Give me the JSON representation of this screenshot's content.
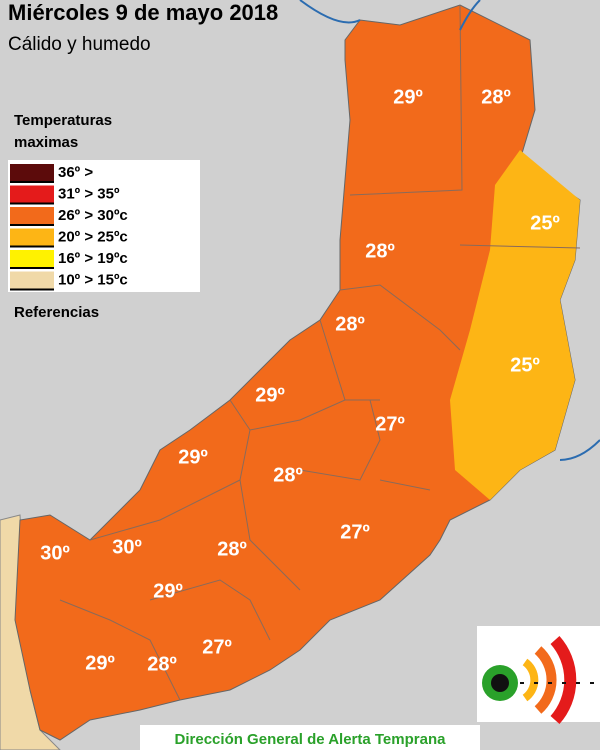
{
  "header": {
    "title": "Miércoles 9 de mayo 2018",
    "subtitle": "Cálido y humedo"
  },
  "legend": {
    "title": [
      "Temperaturas",
      "maximas"
    ],
    "items": [
      {
        "label": "36º >",
        "color": "#5c0b0b"
      },
      {
        "label": "31º > 35º",
        "color": "#e41b1b"
      },
      {
        "label": "26º > 30ºc",
        "color": "#f26a1b"
      },
      {
        "label": "20º > 25ºc",
        "color": "#fdb515"
      },
      {
        "label": "16º > 19ºc",
        "color": "#fff200"
      },
      {
        "label": "10º > 15ºc",
        "color": "#f0d9a8"
      }
    ],
    "footer": "Referencias"
  },
  "regions": [
    "29º",
    "28º",
    "25º",
    "28º",
    "28º",
    "25º",
    "29º",
    "27º",
    "29º",
    "28º",
    "27º",
    "30º",
    "30º",
    "28º",
    "29º",
    "29º",
    "28º",
    "27º"
  ],
  "credit": "Dirección General de Alerta Temprana"
}
